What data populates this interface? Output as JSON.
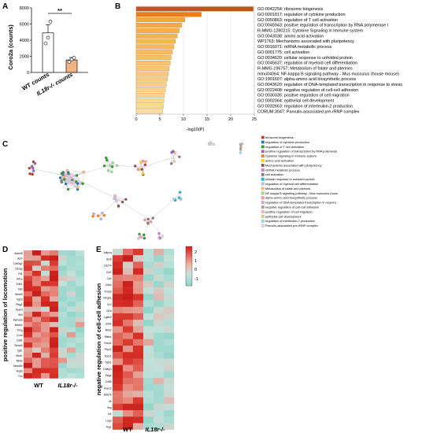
{
  "figure": {
    "panel_a": {
      "letter": "A",
      "ylabel": "Coro2a (counts)",
      "significance": "**",
      "chart_data": {
        "type": "bar",
        "categories": [
          "WT counts",
          "IL18r-/- counts"
        ],
        "values": [
          4900,
          1550
        ],
        "errors": [
          1000,
          300
        ],
        "points": [
          [
            3600,
            4300,
            6300
          ],
          [
            1300,
            1600,
            1800
          ]
        ],
        "ylim": [
          0,
          8000
        ],
        "yticks": [
          "0",
          "2000",
          "4000",
          "6000",
          "8000"
        ],
        "colors": [
          "#ffffff",
          "#f4b183"
        ]
      }
    },
    "panel_b": {
      "letter": "B",
      "xlabel": "-log10(P)",
      "chart_data": {
        "type": "bar",
        "orientation": "horizontal",
        "xlim": [
          0,
          25
        ],
        "xticks": [
          "0",
          "5",
          "10",
          "15",
          "20",
          "25"
        ],
        "terms": [
          "GO:0042254: ribosome biogenesis",
          "GO:0001817: regulation of cytokine production",
          "GO:0050863: regulation of T cell activation",
          "GO:0045943: positive regulation of transcription by RNA polymerase I",
          "R-MMU-1280215: Cytokine Signaling in Immune system",
          "GO:0043038: amino acid activation",
          "WP1763: Mechanisms associated with pluripotency",
          "GO:0016071: mRNA metabolic process",
          "GO:0001775: cell activation",
          "GO:0034620: cellular response to unfolded protein",
          "GO:0045637: regulation of myeloid cell differentiation",
          "R-MMU-196757: Metabolism of folate and pterines",
          "mmu04064: NF-kappa B signaling pathway - Mus musculus (house mouse)",
          "GO:1901607: alpha-amino acid biosynthetic process",
          "GO:0043620: regulation of DNA-templated transcription in response to stress",
          "GO:0022408: negative regulation of cell-cell adhesion",
          "GO:0030335: positive regulation of cell migration",
          "GO:0002064: epithelial cell development",
          "GO:0032663: regulation of interleukin-2 production",
          "CORUM:3047: Parvulin-associated pre-rRNP complex"
        ],
        "values": [
          24.8,
          13.8,
          10.3,
          9.6,
          9.1,
          8.7,
          8.3,
          8.0,
          7.7,
          7.4,
          7.2,
          7.0,
          6.8,
          6.6,
          6.4,
          6.2,
          6.0,
          5.9,
          5.8,
          5.6
        ]
      }
    },
    "panel_c": {
      "letter": "C",
      "legend": [
        "ribosome biogenesis",
        "regulation of cytokine production",
        "regulation of T cell activation",
        "positive regulation of transcription by RNA polymeras",
        "Cytokine Signaling in Immune system",
        "amino acid activation",
        "Mechanisms associated with pluripotency",
        "mRNA metabolic process",
        "cell activation",
        "cellular response to unfolded protein",
        "regulation of myeloid cell differentiation",
        "Metabolism of folate and pterines",
        "NF-kappa B signaling pathway - Mus musculus (hous",
        "alpha-amino acid biosynthetic process",
        "regulation of DNA-templated transcription in respons",
        "negative regulation of cell-cell adhesion",
        "positive regulation of cell migration",
        "epithelial cell development",
        "regulation of interleukin-2 production",
        "Parvulin-associated pre-rRNP complex"
      ],
      "legend_colors": [
        "#c0392b",
        "#1f77b4",
        "#2ca02c",
        "#9467bd",
        "#ff7f0e",
        "#ffdf00",
        "#8c564b",
        "#e377c2",
        "#7f7f7f",
        "#17becf",
        "#aec7e8",
        "#ffbb78",
        "#98df8a",
        "#ff9896",
        "#c5b0d5",
        "#c49c94",
        "#f7b6d2",
        "#dbdb8d",
        "#9edae5",
        "#d9d9d9"
      ]
    },
    "panel_d": {
      "letter": "D",
      "ylabel": "positive regulation of locomotion",
      "xlabel_wt": "WT",
      "xlabel_ko": "IL18r-/-",
      "genes": [
        "Adam8",
        "Apln",
        "Cd40lg2",
        "Cd2ap",
        "Flt1",
        "Hif1a",
        "Il18r1",
        "Met",
        "Nedd9",
        "Itgb3",
        "Ptsg2",
        "Ppard",
        "Sell",
        "Sema3a",
        "Madh4",
        "Tubg",
        "Ccnd",
        "Cd81",
        "Smad3",
        "Igf1r",
        "Mst1r",
        "Mirlet",
        "Sema5b",
        "Vegfa",
        "Tnn"
      ]
    },
    "panel_e": {
      "letter": "E",
      "ylabel": "negative regulation of cell-cell adhesion",
      "xlabel_wt": "WT",
      "xlabel_ko": "IL18r-/-",
      "genes": [
        "Adipoq",
        "Bcl6",
        "Cd274",
        "Ccl2",
        "Cd4",
        "Ctla4",
        "Foxp3",
        "Hmgb1",
        "Il10",
        "Il2ra",
        "Lgals9",
        "Lilrb4",
        "Msh2",
        "Nfkbiz",
        "Pdcd1",
        "Ptpn2",
        "Socs1",
        "Tgfb1",
        "Tnfaip3",
        "Vsig4",
        "Cd86",
        "Runx3",
        "Zbtb7b",
        "Il6",
        "Ifng",
        "Irf1",
        "Lag3",
        "Arg1"
      ]
    },
    "colorbar": {
      "ticks": [
        "2",
        "1",
        "0",
        "-1"
      ]
    }
  }
}
